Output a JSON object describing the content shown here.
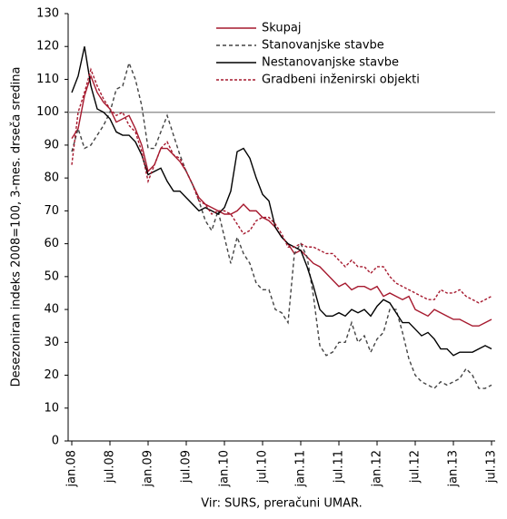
{
  "chart_data": {
    "type": "line",
    "y_label": "Desezoniran indeks 2008=100, 3-mes. drseča sredina",
    "x_label": "Vir: SURS, preračuni UMAR.",
    "categories": [
      "jan.08",
      null,
      null,
      null,
      null,
      null,
      "jul.08",
      null,
      null,
      null,
      null,
      null,
      "jan.09",
      null,
      null,
      null,
      null,
      null,
      "jul.09",
      null,
      null,
      null,
      null,
      null,
      "jan.10",
      null,
      null,
      null,
      null,
      null,
      "jul.10",
      null,
      null,
      null,
      null,
      null,
      "jan.11",
      null,
      null,
      null,
      null,
      null,
      "jul.11",
      null,
      null,
      null,
      null,
      null,
      "jan.12",
      null,
      null,
      null,
      null,
      null,
      "jul.12",
      null,
      null,
      null,
      null,
      null,
      "jan.13",
      null,
      null,
      null,
      null,
      null,
      "jul.13"
    ],
    "ylim": [
      0,
      130
    ],
    "yticks": [
      0,
      10,
      20,
      30,
      40,
      50,
      60,
      70,
      80,
      90,
      100,
      110,
      120,
      130
    ],
    "reference_line": 100,
    "legend": "top-right",
    "series": [
      {
        "name": "Skupaj",
        "color": "#a6192e",
        "dash": "none",
        "values": [
          92,
          95,
          105,
          111,
          106,
          103,
          101,
          97,
          98,
          99,
          95,
          90,
          82,
          84,
          89,
          89,
          87,
          85,
          82,
          78,
          74,
          72,
          71,
          70,
          69,
          69,
          70,
          72,
          70,
          70,
          68,
          67,
          65,
          62,
          60,
          57,
          58,
          56,
          54,
          53,
          51,
          49,
          47,
          48,
          46,
          47,
          47,
          46,
          47,
          44,
          45,
          44,
          43,
          44,
          40,
          39,
          38,
          40,
          39,
          38,
          37,
          37,
          36,
          35,
          35,
          36,
          37
        ]
      },
      {
        "name": "Stanovanjske stavbe",
        "color": "#444444",
        "dash": "4,3",
        "values": [
          88,
          95,
          89,
          90,
          93,
          96,
          100,
          107,
          108,
          115,
          110,
          102,
          89,
          89,
          94,
          99,
          93,
          87,
          82,
          78,
          73,
          67,
          64,
          70,
          62,
          54,
          62,
          57,
          54,
          48,
          46,
          46,
          40,
          39,
          36,
          57,
          60,
          56,
          44,
          29,
          26,
          27,
          30,
          30,
          36,
          30,
          32,
          27,
          31,
          33,
          40,
          40,
          33,
          25,
          20,
          18,
          17,
          16,
          18,
          17,
          18,
          19,
          22,
          20,
          16,
          16,
          17
        ]
      },
      {
        "name": "Nestanovanjske stavbe",
        "color": "#000000",
        "dash": "none",
        "values": [
          106,
          111,
          120,
          108,
          101,
          100,
          98,
          94,
          93,
          93,
          91,
          87,
          81,
          82,
          83,
          79,
          76,
          76,
          74,
          72,
          70,
          71,
          70,
          69,
          71,
          76,
          88,
          89,
          86,
          80,
          75,
          73,
          65,
          62,
          60,
          59,
          58,
          53,
          47,
          40,
          38,
          38,
          39,
          38,
          40,
          39,
          40,
          38,
          41,
          43,
          42,
          39,
          36,
          36,
          34,
          32,
          33,
          31,
          28,
          28,
          26,
          27,
          27,
          27,
          28,
          29,
          28
        ]
      },
      {
        "name": "Gradbeni inženirski objekti",
        "color": "#a6192e",
        "dash": "3,2",
        "values": [
          84,
          100,
          106,
          113,
          108,
          104,
          101,
          99,
          100,
          96,
          94,
          88,
          79,
          84,
          89,
          91,
          87,
          86,
          82,
          78,
          73,
          72,
          69,
          70,
          70,
          69,
          66,
          63,
          64,
          67,
          68,
          68,
          66,
          63,
          59,
          59,
          60,
          59,
          59,
          58,
          57,
          57,
          55,
          53,
          55,
          53,
          53,
          51,
          53,
          53,
          50,
          48,
          47,
          46,
          45,
          44,
          43,
          43,
          46,
          45,
          45,
          46,
          44,
          43,
          42,
          43,
          44
        ]
      }
    ]
  }
}
